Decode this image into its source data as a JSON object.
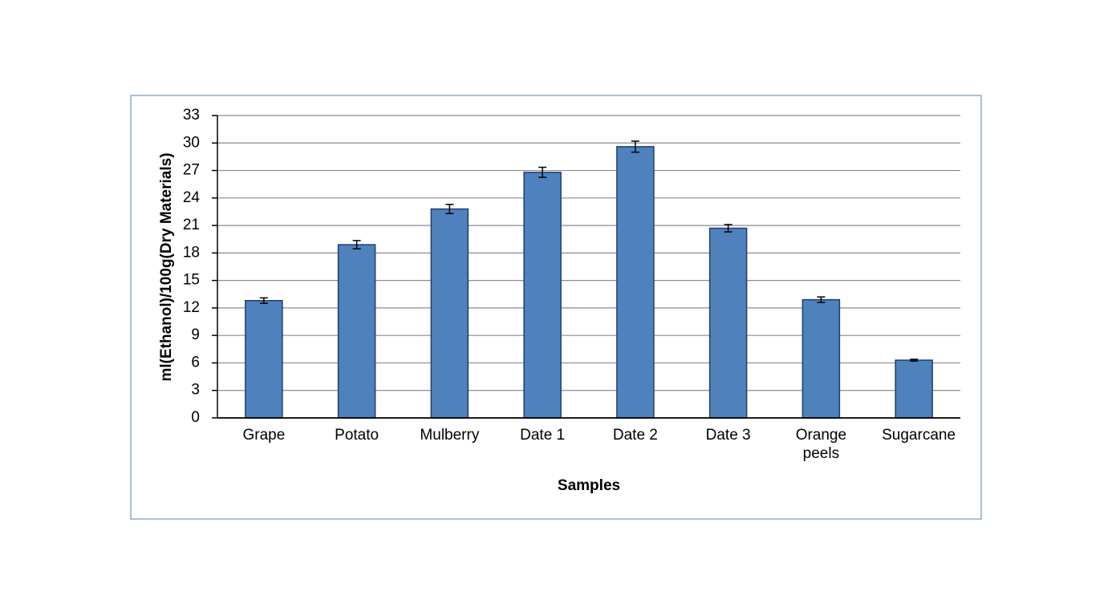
{
  "chart_data": {
    "type": "bar",
    "x_label": "Samples",
    "y_label": "ml(Ethanol)/100g(Dry Materials)",
    "categories": [
      "Grape",
      "Potato",
      "Mulberry",
      "Date 1",
      "Date 2",
      "Date 3",
      "Orange peels",
      "Sugarcane"
    ],
    "values": [
      12.8,
      18.9,
      22.8,
      26.8,
      29.6,
      20.7,
      12.9,
      6.3
    ],
    "errors": [
      0.3,
      0.45,
      0.5,
      0.55,
      0.6,
      0.4,
      0.3,
      0.1
    ],
    "color": "#4f81bd",
    "ylim": [
      0,
      33
    ],
    "yticks": [
      0,
      3,
      6,
      9,
      12,
      15,
      18,
      21,
      24,
      27,
      30,
      33
    ],
    "grid": true
  }
}
